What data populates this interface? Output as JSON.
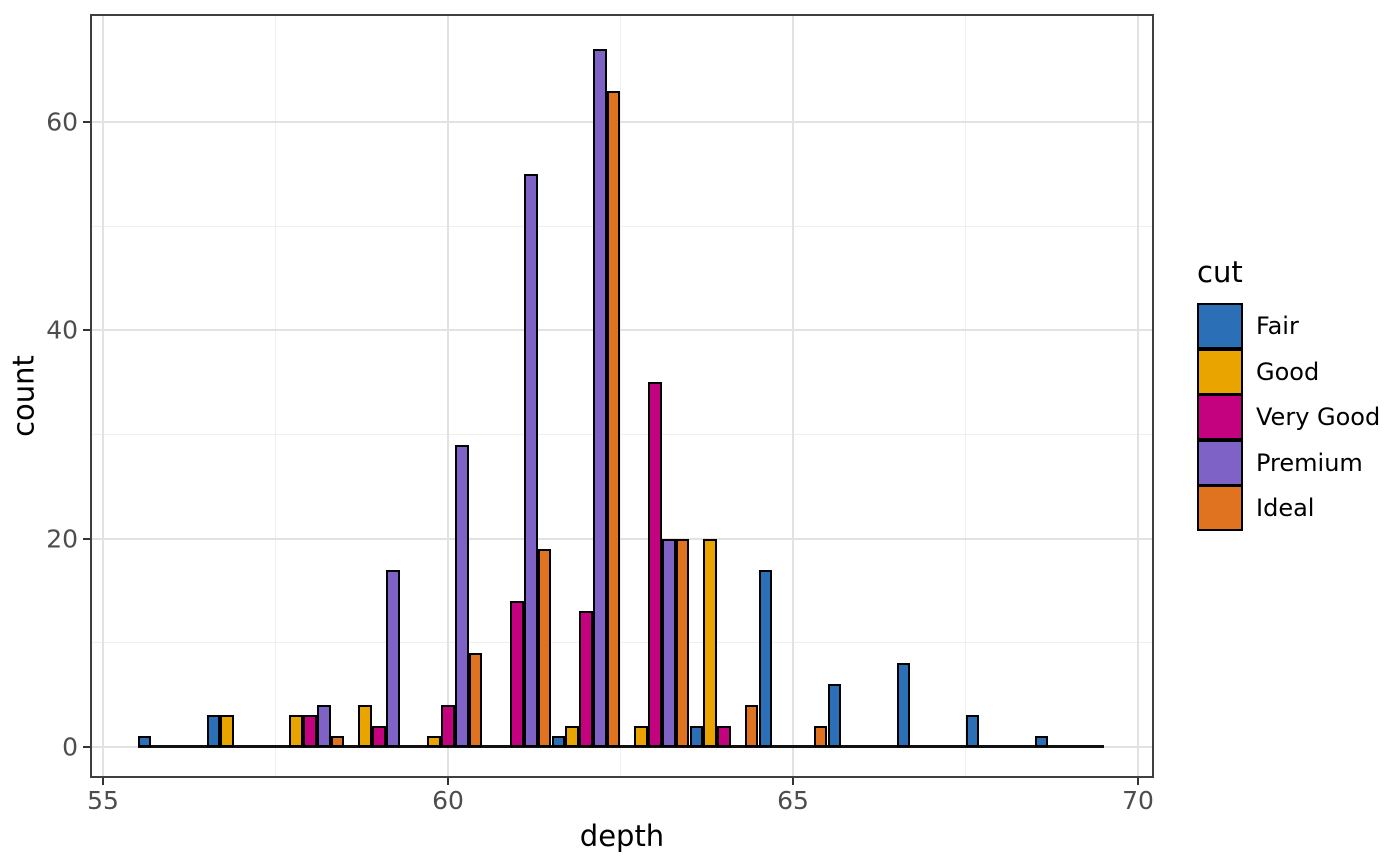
{
  "chart_data": {
    "type": "bar",
    "subtype": "dodged-histogram",
    "title": "",
    "xlabel": "depth",
    "ylabel": "count",
    "legend_title": "cut",
    "legend_position": "right",
    "x": [
      56,
      57,
      58,
      59,
      60,
      61,
      62,
      63,
      64,
      65,
      66,
      67,
      68,
      69
    ],
    "binwidth": 1,
    "series": [
      {
        "name": "Fair",
        "color": "#2b6fb7",
        "values": [
          1,
          3,
          0,
          0,
          0,
          0,
          1,
          0,
          2,
          17,
          6,
          8,
          3,
          1
        ]
      },
      {
        "name": "Good",
        "color": "#e9a400",
        "values": [
          0,
          3,
          3,
          4,
          1,
          0,
          2,
          2,
          20,
          0,
          0,
          0,
          0,
          0
        ]
      },
      {
        "name": "Very Good",
        "color": "#c4017e",
        "values": [
          0,
          0,
          3,
          2,
          4,
          14,
          13,
          35,
          2,
          0,
          0,
          0,
          0,
          0
        ]
      },
      {
        "name": "Premium",
        "color": "#7f62c6",
        "values": [
          0,
          0,
          4,
          17,
          29,
          55,
          67,
          20,
          0,
          0,
          0,
          0,
          0,
          0
        ]
      },
      {
        "name": "Ideal",
        "color": "#e0731f",
        "values": [
          0,
          0,
          1,
          0,
          9,
          19,
          63,
          20,
          4,
          2,
          0,
          0,
          0,
          0
        ]
      }
    ],
    "x_ticks": [
      55,
      60,
      65,
      70
    ],
    "x_tick_labels": [
      "55",
      "60",
      "65",
      "70"
    ],
    "x_minor_breaks": [
      57.5,
      62.5,
      67.5
    ],
    "y_ticks": [
      0,
      20,
      40,
      60
    ],
    "y_tick_labels": [
      "0",
      "20",
      "40",
      "60"
    ],
    "y_minor_breaks": [
      10,
      30,
      50
    ],
    "xlim": [
      54.8,
      70.2
    ],
    "ylim": [
      -3,
      70.3
    ],
    "grid": true,
    "bar_outline_color": "#000000"
  },
  "style": {
    "panel_background": "#ffffff",
    "panel_border_color": "#3f3f3f",
    "major_grid_color": "#e2e2e2",
    "minor_grid_color": "#efefef",
    "tick_color": "#333333",
    "tick_label_color": "#4d4d4d",
    "text_color": "#000000"
  },
  "legend": {
    "title": "cut",
    "entries": [
      {
        "label": "Fair",
        "color": "#2b6fb7"
      },
      {
        "label": "Good",
        "color": "#e9a400"
      },
      {
        "label": "Very Good",
        "color": "#c4017e"
      },
      {
        "label": "Premium",
        "color": "#7f62c6"
      },
      {
        "label": "Ideal",
        "color": "#e0731f"
      }
    ]
  }
}
